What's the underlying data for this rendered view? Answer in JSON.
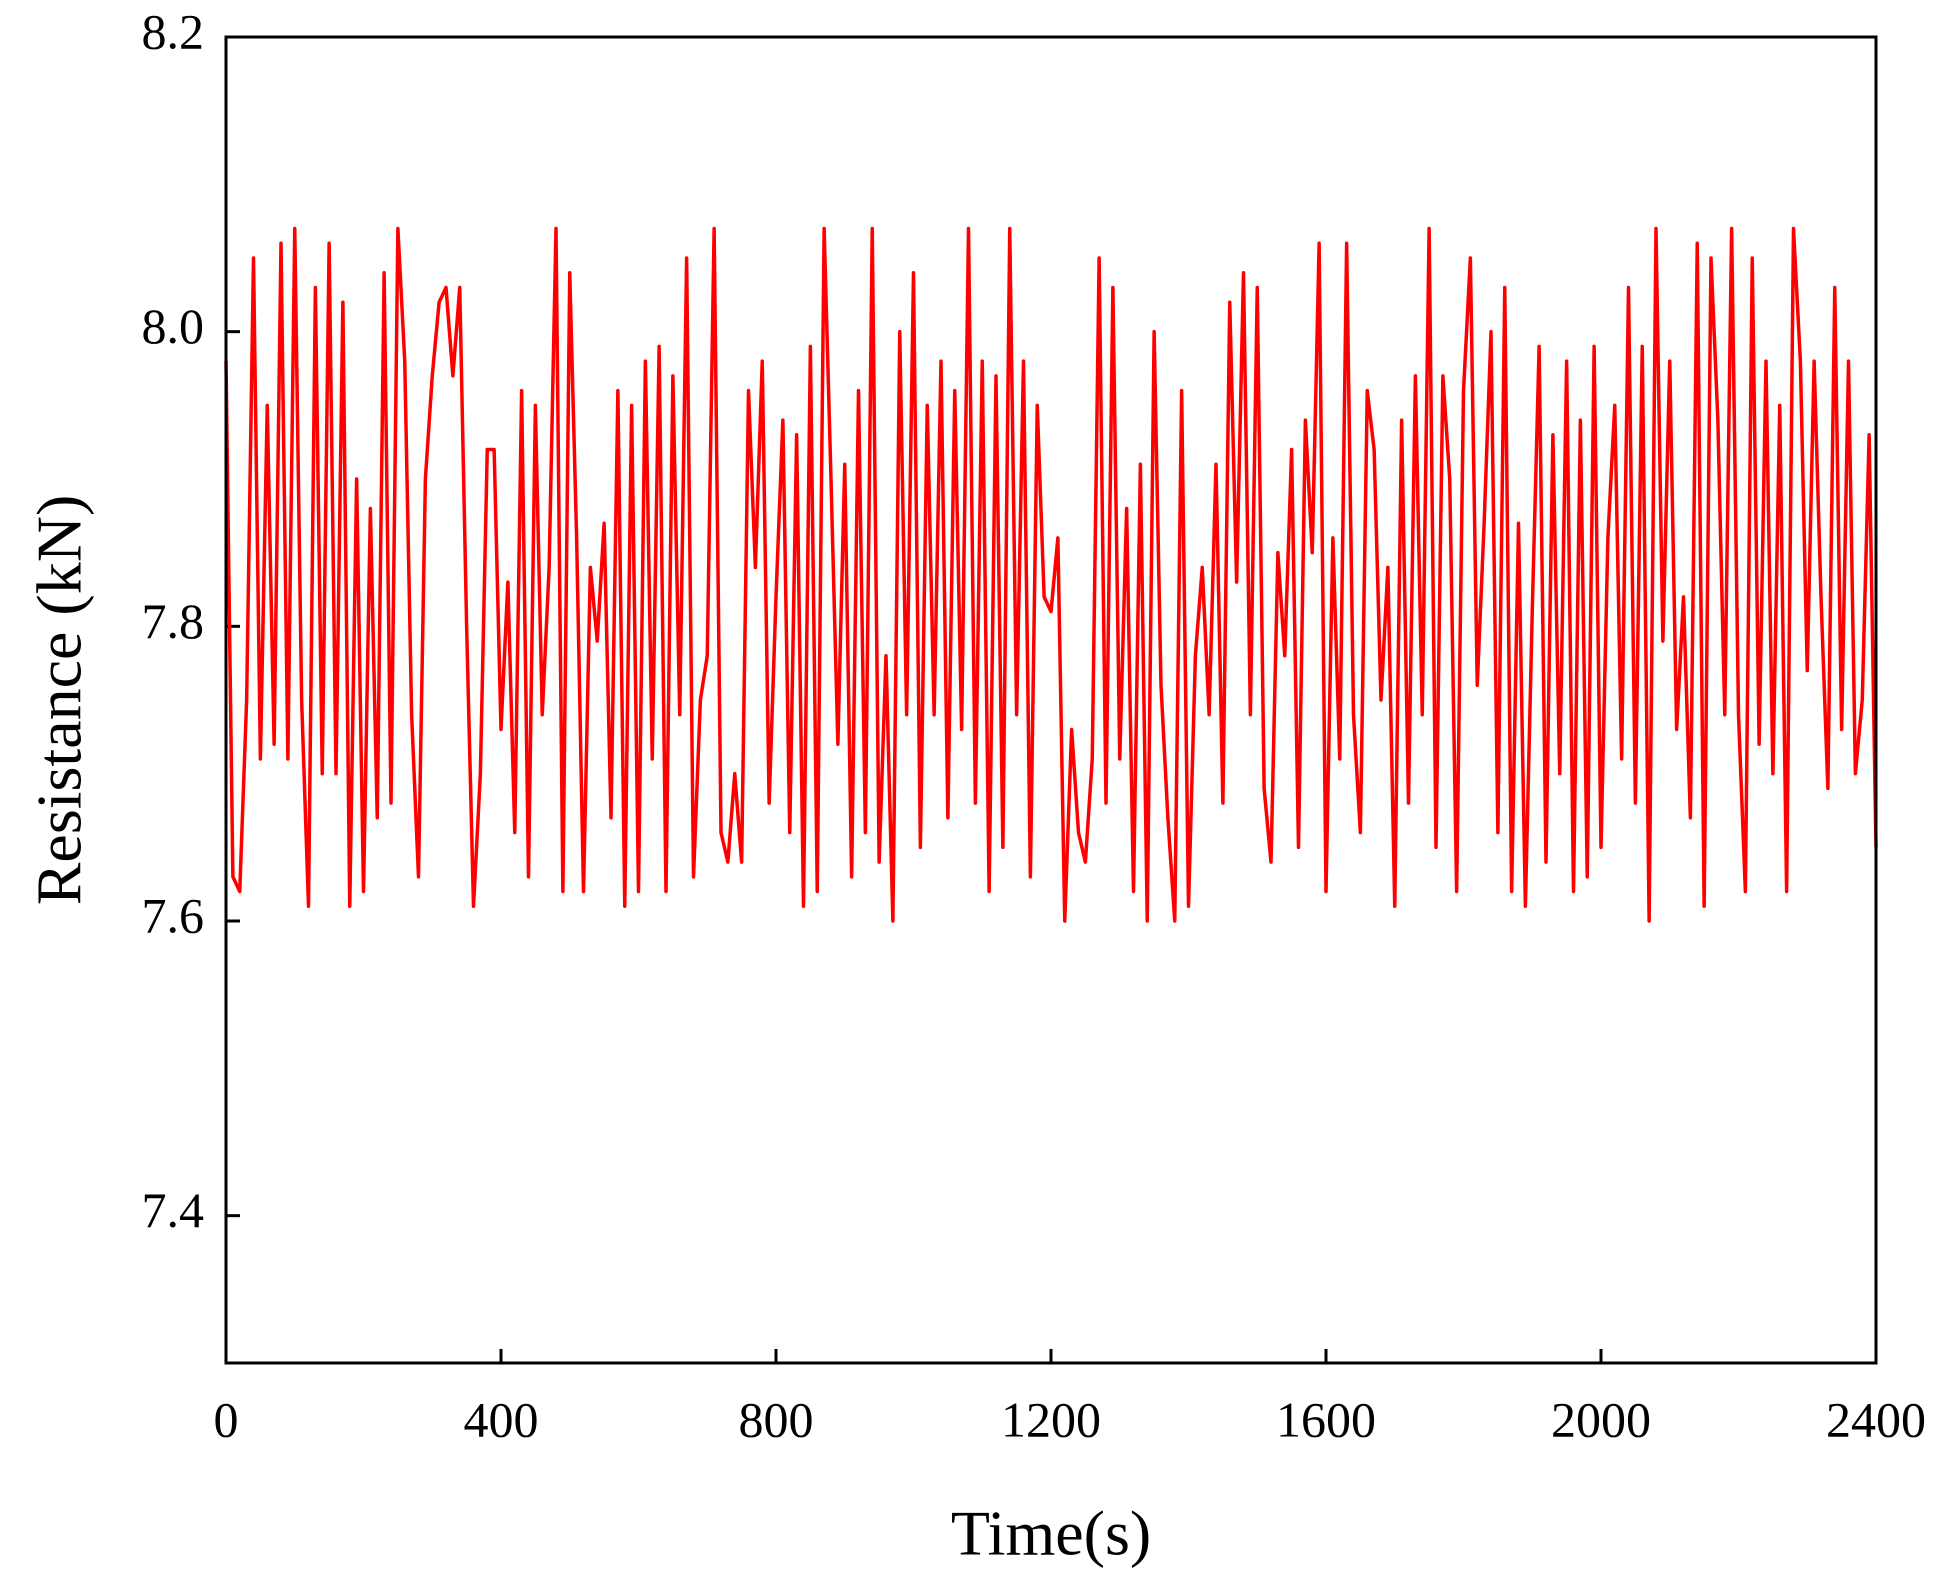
{
  "chart_data": {
    "type": "line",
    "xlabel": "Time(s)",
    "ylabel": "Resistance (kN)",
    "xlim": [
      0,
      2400
    ],
    "xticks": [
      0,
      400,
      800,
      1200,
      1600,
      2000,
      2400
    ],
    "ylim": [
      7.3,
      8.2
    ],
    "yticks": [
      7.4,
      7.6,
      7.8,
      8.0,
      8.2
    ],
    "x": [
      0,
      10,
      20,
      30,
      40,
      50,
      60,
      70,
      80,
      90,
      100,
      110,
      120,
      130,
      140,
      150,
      160,
      170,
      180,
      190,
      200,
      210,
      220,
      230,
      240,
      250,
      260,
      270,
      280,
      290,
      300,
      310,
      320,
      330,
      340,
      350,
      360,
      370,
      380,
      390,
      400,
      410,
      420,
      430,
      440,
      450,
      460,
      470,
      480,
      490,
      500,
      510,
      520,
      530,
      540,
      550,
      560,
      570,
      580,
      590,
      600,
      610,
      620,
      630,
      640,
      650,
      660,
      670,
      680,
      690,
      700,
      710,
      720,
      730,
      740,
      750,
      760,
      770,
      780,
      790,
      800,
      810,
      820,
      830,
      840,
      850,
      860,
      870,
      880,
      890,
      900,
      910,
      920,
      930,
      940,
      950,
      960,
      970,
      980,
      990,
      1000,
      1010,
      1020,
      1030,
      1040,
      1050,
      1060,
      1070,
      1080,
      1090,
      1100,
      1110,
      1120,
      1130,
      1140,
      1150,
      1160,
      1170,
      1180,
      1190,
      1200,
      1210,
      1220,
      1230,
      1240,
      1250,
      1260,
      1270,
      1280,
      1290,
      1300,
      1310,
      1320,
      1330,
      1340,
      1350,
      1360,
      1370,
      1380,
      1390,
      1400,
      1410,
      1420,
      1430,
      1440,
      1450,
      1460,
      1470,
      1480,
      1490,
      1500,
      1510,
      1520,
      1530,
      1540,
      1550,
      1560,
      1570,
      1580,
      1590,
      1600,
      1610,
      1620,
      1630,
      1640,
      1650,
      1660,
      1670,
      1680,
      1690,
      1700,
      1710,
      1720,
      1730,
      1740,
      1750,
      1760,
      1770,
      1780,
      1790,
      1800,
      1810,
      1820,
      1830,
      1840,
      1850,
      1860,
      1870,
      1880,
      1890,
      1900,
      1910,
      1920,
      1930,
      1940,
      1950,
      1960,
      1970,
      1980,
      1990,
      2000,
      2010,
      2020,
      2030,
      2040,
      2050,
      2060,
      2070,
      2080,
      2090,
      2100,
      2110,
      2120,
      2130,
      2140,
      2150,
      2160,
      2170,
      2180,
      2190,
      2200,
      2210,
      2220,
      2230,
      2240,
      2250,
      2260,
      2270,
      2280,
      2290,
      2300,
      2310,
      2320,
      2330,
      2340,
      2350,
      2360,
      2370,
      2380,
      2390,
      2400
    ],
    "series": [
      {
        "color": "#ff0000",
        "values": [
          7.98,
          7.63,
          7.62,
          7.75,
          8.05,
          7.71,
          7.95,
          7.72,
          8.06,
          7.71,
          8.07,
          7.75,
          7.61,
          8.03,
          7.7,
          8.06,
          7.7,
          8.02,
          7.61,
          7.9,
          7.62,
          7.88,
          7.67,
          8.04,
          7.68,
          8.07,
          7.98,
          7.74,
          7.63,
          7.9,
          7.97,
          8.02,
          8.03,
          7.97,
          8.03,
          7.8,
          7.61,
          7.7,
          7.92,
          7.92,
          7.73,
          7.83,
          7.66,
          7.96,
          7.63,
          7.95,
          7.74,
          7.84,
          8.07,
          7.62,
          8.04,
          7.86,
          7.62,
          7.84,
          7.79,
          7.87,
          7.67,
          7.96,
          7.61,
          7.95,
          7.62,
          7.98,
          7.71,
          7.99,
          7.62,
          7.97,
          7.74,
          8.05,
          7.63,
          7.75,
          7.78,
          8.07,
          7.66,
          7.64,
          7.7,
          7.64,
          7.96,
          7.84,
          7.98,
          7.68,
          7.82,
          7.94,
          7.66,
          7.93,
          7.61,
          7.99,
          7.62,
          8.07,
          7.9,
          7.72,
          7.91,
          7.63,
          7.96,
          7.66,
          8.07,
          7.64,
          7.78,
          7.6,
          8.0,
          7.74,
          8.04,
          7.65,
          7.95,
          7.74,
          7.98,
          7.67,
          7.96,
          7.73,
          8.07,
          7.68,
          7.98,
          7.62,
          7.97,
          7.65,
          8.07,
          7.74,
          7.98,
          7.63,
          7.95,
          7.82,
          7.81,
          7.86,
          7.6,
          7.73,
          7.66,
          7.64,
          7.71,
          8.05,
          7.68,
          8.03,
          7.71,
          7.88,
          7.62,
          7.91,
          7.6,
          8.0,
          7.76,
          7.67,
          7.6,
          7.96,
          7.61,
          7.78,
          7.84,
          7.74,
          7.91,
          7.68,
          8.02,
          7.83,
          8.04,
          7.74,
          8.03,
          7.69,
          7.64,
          7.85,
          7.78,
          7.92,
          7.65,
          7.94,
          7.85,
          8.06,
          7.62,
          7.86,
          7.71,
          8.06,
          7.74,
          7.66,
          7.96,
          7.92,
          7.75,
          7.84,
          7.61,
          7.94,
          7.68,
          7.97,
          7.74,
          8.07,
          7.65,
          7.97,
          7.9,
          7.62,
          7.96,
          8.05,
          7.76,
          7.87,
          8.0,
          7.66,
          8.03,
          7.62,
          7.87,
          7.61,
          7.81,
          7.99,
          7.64,
          7.93,
          7.7,
          7.98,
          7.62,
          7.94,
          7.63,
          7.99,
          7.65,
          7.86,
          7.95,
          7.71,
          8.03,
          7.68,
          7.99,
          7.6,
          8.07,
          7.79,
          7.98,
          7.73,
          7.82,
          7.67,
          8.06,
          7.61,
          8.05,
          7.94,
          7.74,
          8.07,
          7.74,
          7.62,
          8.05,
          7.72,
          7.98,
          7.7,
          7.95,
          7.62,
          8.07,
          7.98,
          7.77,
          7.98,
          7.82,
          7.69,
          8.03,
          7.73,
          7.98,
          7.7,
          7.75,
          7.93,
          7.65
        ]
      }
    ]
  }
}
